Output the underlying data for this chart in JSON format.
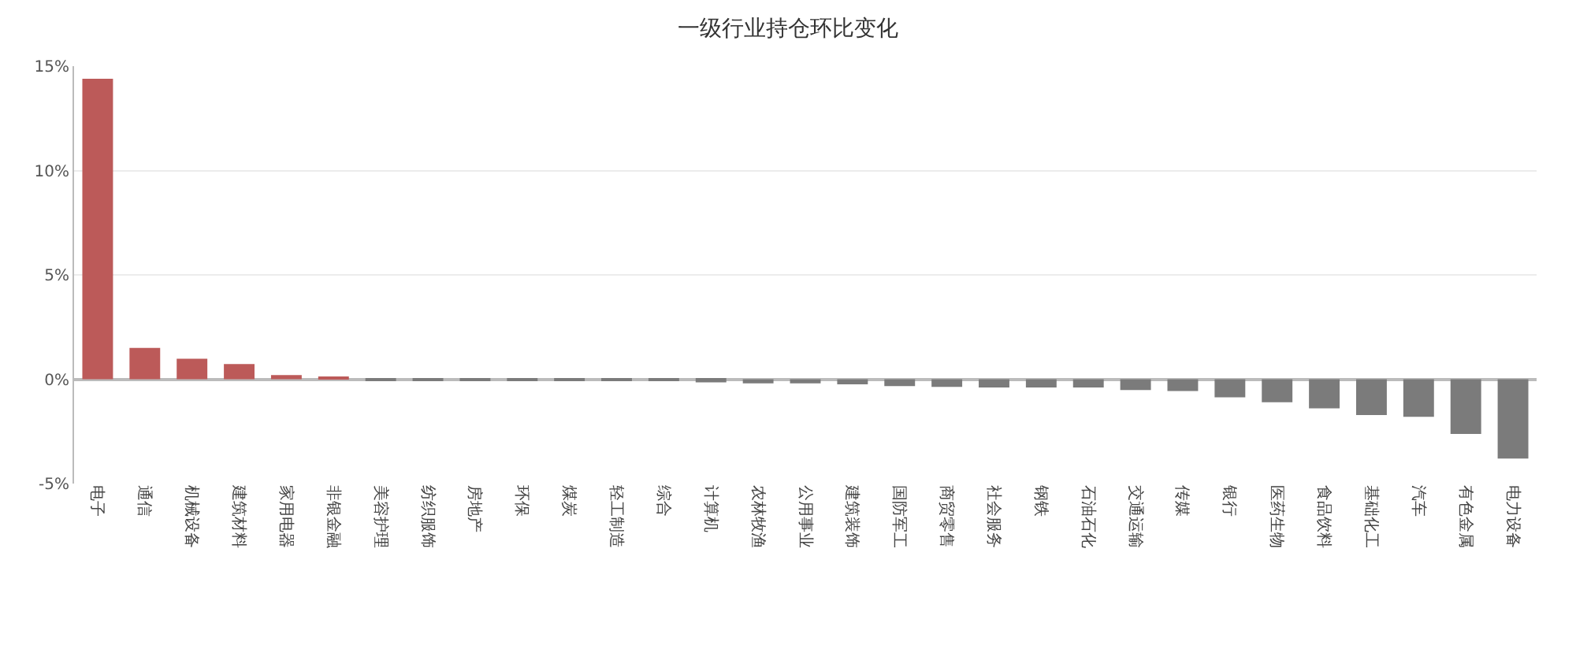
{
  "chart_data": {
    "type": "bar",
    "title": "一级行业持仓环比变化",
    "categories": [
      "电子",
      "通信",
      "机械设备",
      "建筑材料",
      "家用电器",
      "非银金融",
      "美容护理",
      "纺织服饰",
      "房地产",
      "环保",
      "煤炭",
      "轻工制造",
      "综合",
      "计算机",
      "农林牧渔",
      "公用事业",
      "建筑装饰",
      "国防军工",
      "商贸零售",
      "社会服务",
      "钢铁",
      "石油石化",
      "交通运输",
      "传媒",
      "银行",
      "医药生物",
      "食品饮料",
      "基础化工",
      "汽车",
      "有色金属",
      "电力设备"
    ],
    "values": [
      14.4,
      1.5,
      0.98,
      0.73,
      0.2,
      0.07,
      -0.02,
      -0.05,
      -0.06,
      -0.06,
      -0.08,
      -0.08,
      -0.08,
      -0.15,
      -0.2,
      -0.2,
      -0.25,
      -0.33,
      -0.37,
      -0.4,
      -0.4,
      -0.4,
      -0.52,
      -0.57,
      -0.87,
      -1.1,
      -1.4,
      -1.72,
      -1.8,
      -2.62,
      -3.8
    ],
    "colors": [
      "#bc5a59",
      "#bc5a59",
      "#bc5a59",
      "#bc5a59",
      "#bc5a59",
      "#bc5a59",
      "#7b7b7b",
      "#7b7b7b",
      "#7b7b7b",
      "#7b7b7b",
      "#7b7b7b",
      "#7b7b7b",
      "#7b7b7b",
      "#7b7b7b",
      "#7b7b7b",
      "#7b7b7b",
      "#7b7b7b",
      "#7b7b7b",
      "#7b7b7b",
      "#7b7b7b",
      "#7b7b7b",
      "#7b7b7b",
      "#7b7b7b",
      "#7b7b7b",
      "#7b7b7b",
      "#7b7b7b",
      "#7b7b7b",
      "#7b7b7b",
      "#7b7b7b",
      "#7b7b7b",
      "#7b7b7b"
    ],
    "ylim": [
      -5,
      15
    ],
    "yticks": [
      {
        "value": -5,
        "label": "-5%"
      },
      {
        "value": 0,
        "label": "0%"
      },
      {
        "value": 5,
        "label": "5%"
      },
      {
        "value": 10,
        "label": "10%"
      },
      {
        "value": 15,
        "label": "15%"
      }
    ],
    "grid": "y",
    "legend": false
  }
}
